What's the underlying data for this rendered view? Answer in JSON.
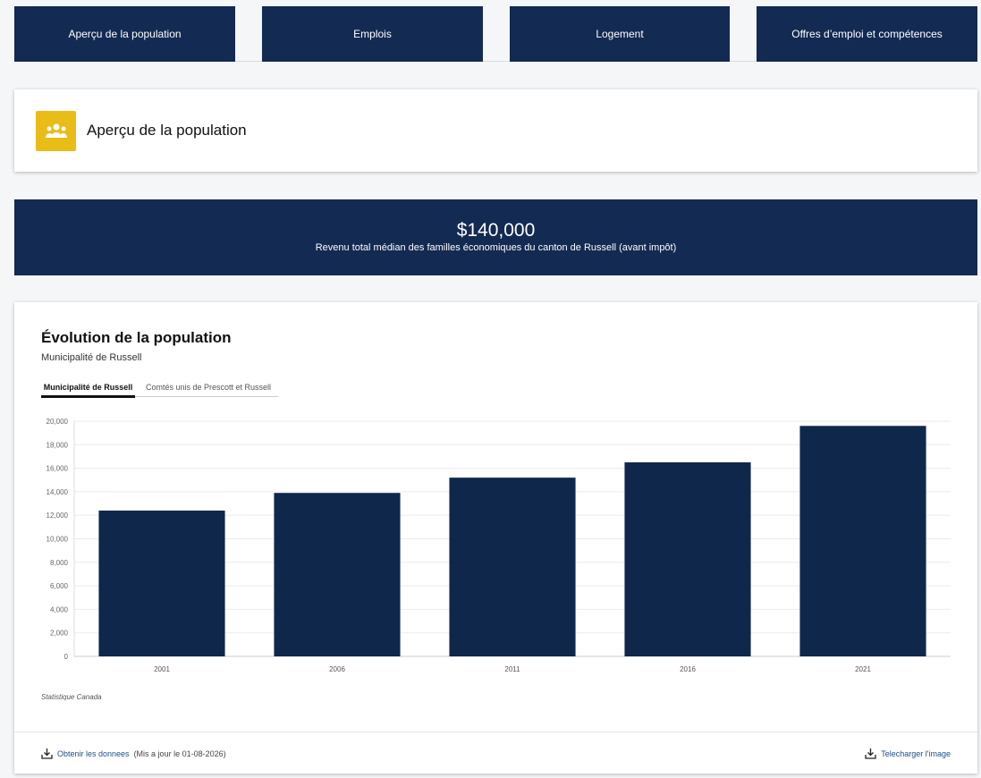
{
  "nav": [
    "Aperçu de la population",
    "Emplois",
    "Logement",
    "Offres d’emploi et compétences"
  ],
  "header": {
    "title": "Aperçu de la population",
    "icon": "people-group-icon",
    "icon_color": "#e8bd17"
  },
  "banner": {
    "value": "$140,000",
    "label": "Revenu total médian des familles économiques du canton de Russell (avant impôt)"
  },
  "chart_card": {
    "title": "Évolution de la population",
    "subtitle": "Municipalité de Russell",
    "tabs": [
      "Municipalité de Russell",
      "Comtés unis de Prescott et Russell"
    ],
    "active_tab": 0,
    "source": "Statistique Canada",
    "get_data": "Obtenir les donnees",
    "updated": "(Mis a jour le 01-08-2026)",
    "download_image": "Telecharger l'image"
  },
  "chart_data": {
    "type": "bar",
    "categories": [
      "2001",
      "2006",
      "2011",
      "2016",
      "2021"
    ],
    "values": [
      12400,
      13900,
      15200,
      16500,
      19600
    ],
    "ylim": [
      0,
      20000
    ],
    "yticks": [
      "0",
      "2,000",
      "4,000",
      "6,000",
      "8,000",
      "10,000",
      "12,000",
      "14,000",
      "16,000",
      "18,000",
      "20,000"
    ],
    "grid": true,
    "color": "#0f274b"
  }
}
